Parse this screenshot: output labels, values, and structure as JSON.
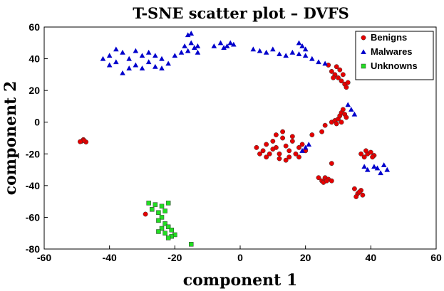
{
  "chart_data": {
    "type": "scatter",
    "title": "T-SNE scatter plot – DVFS",
    "xlabel": "component 1",
    "ylabel": "component 2",
    "xlim": [
      -60,
      60
    ],
    "ylim": [
      -80,
      60
    ],
    "xticks": [
      "-60",
      "-40",
      "-20",
      "0",
      "20",
      "40",
      "60"
    ],
    "yticks": [
      "60",
      "40",
      "20",
      "0",
      "-20",
      "-40",
      "-60",
      "-80"
    ],
    "grid": false,
    "legend_position": "top-right",
    "series": [
      {
        "name": "Benigns",
        "marker": "circle",
        "color": "#e60000",
        "points": [
          [
            -48.5,
            -12
          ],
          [
            -48,
            -11
          ],
          [
            -47.2,
            -12.5
          ],
          [
            -47.8,
            -11.5
          ],
          [
            -49,
            -12.3
          ],
          [
            5,
            -16
          ],
          [
            7,
            -18
          ],
          [
            8,
            -14
          ],
          [
            10,
            -12
          ],
          [
            11,
            -16
          ],
          [
            12,
            -20
          ],
          [
            13,
            -10
          ],
          [
            14,
            -15
          ],
          [
            15,
            -18
          ],
          [
            16,
            -12
          ],
          [
            17,
            -20
          ],
          [
            18,
            -16
          ],
          [
            19,
            -14
          ],
          [
            9,
            -20
          ],
          [
            11,
            -8
          ],
          [
            13,
            -6
          ],
          [
            15,
            -22
          ],
          [
            14,
            -24
          ],
          [
            12,
            -23
          ],
          [
            16,
            -9
          ],
          [
            18,
            -22
          ],
          [
            20,
            -18
          ],
          [
            6,
            -20
          ],
          [
            8,
            -22
          ],
          [
            10,
            -17
          ],
          [
            22,
            -8
          ],
          [
            26,
            -2
          ],
          [
            28,
            0
          ],
          [
            29,
            1
          ],
          [
            30,
            2
          ],
          [
            30.5,
            4
          ],
          [
            31,
            6
          ],
          [
            31.5,
            8
          ],
          [
            32,
            5
          ],
          [
            32.5,
            3
          ],
          [
            31,
            0
          ],
          [
            29.5,
            -1
          ],
          [
            27,
            36
          ],
          [
            28,
            32
          ],
          [
            29,
            30
          ],
          [
            30,
            28
          ],
          [
            31,
            26
          ],
          [
            32,
            24
          ],
          [
            33,
            25
          ],
          [
            30.5,
            33
          ],
          [
            31.5,
            30
          ],
          [
            32.5,
            22
          ],
          [
            29.5,
            35
          ],
          [
            28.5,
            28
          ],
          [
            24,
            -35
          ],
          [
            25,
            -37
          ],
          [
            26,
            -35
          ],
          [
            27,
            -36
          ],
          [
            25.5,
            -38
          ],
          [
            26.5,
            -37
          ],
          [
            28,
            -37
          ],
          [
            35,
            -42
          ],
          [
            36,
            -45
          ],
          [
            37,
            -43
          ],
          [
            35.5,
            -47
          ],
          [
            36.5,
            -44
          ],
          [
            37.5,
            -46
          ],
          [
            28,
            -26
          ],
          [
            37,
            -20
          ],
          [
            38,
            -22
          ],
          [
            39,
            -20
          ],
          [
            40,
            -19
          ],
          [
            41,
            -21
          ],
          [
            38.5,
            -18
          ],
          [
            40.5,
            -22
          ],
          [
            -29,
            -58
          ],
          [
            25,
            -6
          ]
        ]
      },
      {
        "name": "Malwares",
        "marker": "triangle",
        "color": "#0000cc",
        "points": [
          [
            -42,
            40
          ],
          [
            -40,
            42
          ],
          [
            -38,
            38
          ],
          [
            -36,
            44
          ],
          [
            -34,
            40
          ],
          [
            -32,
            36
          ],
          [
            -30,
            42
          ],
          [
            -28,
            38
          ],
          [
            -26,
            35
          ],
          [
            -24,
            40
          ],
          [
            -22,
            37
          ],
          [
            -38,
            46
          ],
          [
            -34,
            34
          ],
          [
            -30,
            34
          ],
          [
            -28,
            44
          ],
          [
            -40,
            36
          ],
          [
            -36,
            31
          ],
          [
            -26,
            42
          ],
          [
            -24,
            34
          ],
          [
            -32,
            45
          ],
          [
            -20,
            42
          ],
          [
            -18,
            44
          ],
          [
            -16,
            45
          ],
          [
            -14,
            47
          ],
          [
            -17,
            48
          ],
          [
            -15,
            50
          ],
          [
            -13,
            48
          ],
          [
            -15,
            56
          ],
          [
            -16,
            55
          ],
          [
            -13,
            44
          ],
          [
            -8,
            48
          ],
          [
            -6,
            50
          ],
          [
            -5,
            47
          ],
          [
            -4,
            48
          ],
          [
            -3,
            50
          ],
          [
            -2,
            49
          ],
          [
            4,
            46
          ],
          [
            6,
            45
          ],
          [
            8,
            44
          ],
          [
            10,
            46
          ],
          [
            12,
            43
          ],
          [
            14,
            42
          ],
          [
            16,
            44
          ],
          [
            18,
            43
          ],
          [
            20,
            42
          ],
          [
            22,
            40
          ],
          [
            24,
            38
          ],
          [
            26,
            37
          ],
          [
            18,
            50
          ],
          [
            19,
            48
          ],
          [
            20,
            46
          ],
          [
            33,
            11
          ],
          [
            34,
            8
          ],
          [
            35,
            5
          ],
          [
            39,
            -30
          ],
          [
            41,
            -28
          ],
          [
            43,
            -32
          ],
          [
            44,
            -27
          ],
          [
            42,
            -29
          ],
          [
            45,
            -30
          ],
          [
            38,
            -28
          ],
          [
            20,
            -16
          ],
          [
            21,
            -14
          ],
          [
            19,
            -18
          ]
        ]
      },
      {
        "name": "Unknowns",
        "marker": "square",
        "color": "#22dd22",
        "points": [
          [
            -28,
            -51
          ],
          [
            -26,
            -52
          ],
          [
            -24,
            -53
          ],
          [
            -22,
            -51
          ],
          [
            -27,
            -55
          ],
          [
            -25,
            -57
          ],
          [
            -23,
            -56
          ],
          [
            -24,
            -60
          ],
          [
            -25,
            -62
          ],
          [
            -23,
            -64
          ],
          [
            -22,
            -66
          ],
          [
            -21,
            -68
          ],
          [
            -24,
            -67
          ],
          [
            -20,
            -71
          ],
          [
            -23,
            -70
          ],
          [
            -21,
            -72
          ],
          [
            -25,
            -69
          ],
          [
            -22,
            -73
          ],
          [
            -15,
            -77
          ]
        ]
      }
    ]
  }
}
